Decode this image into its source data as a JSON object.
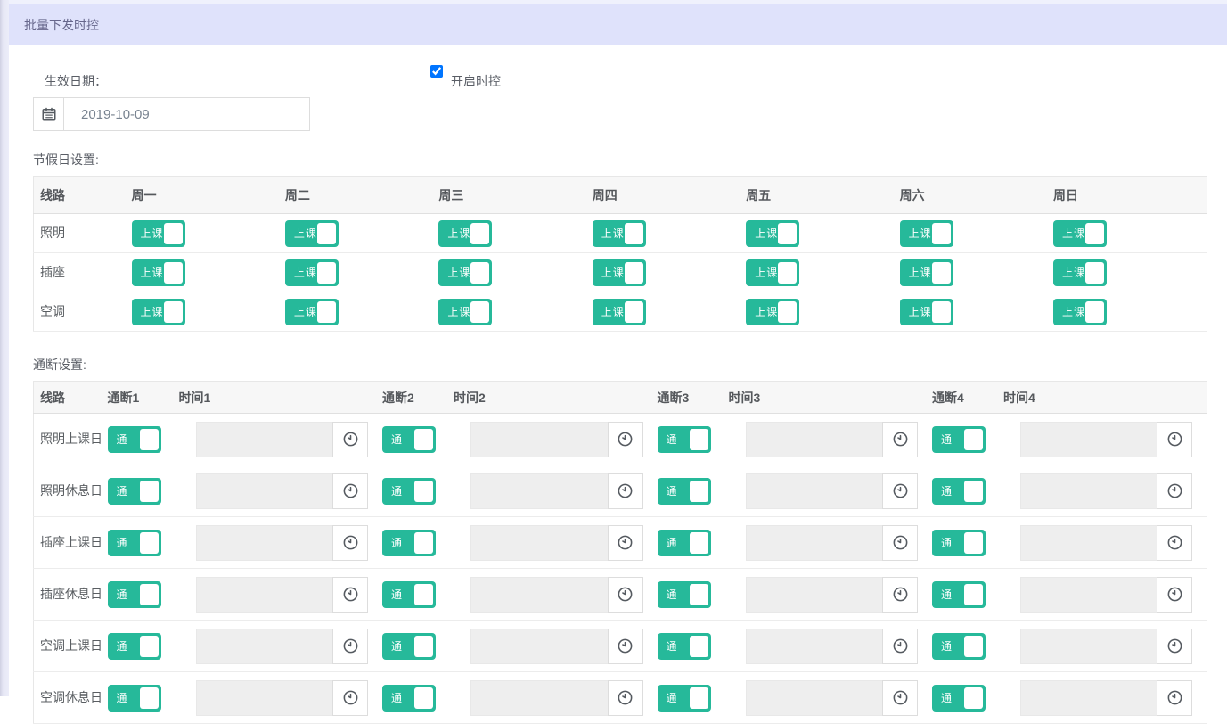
{
  "title_bar": {
    "title": "批量下发时控"
  },
  "form": {
    "effective_date_label": "生效日期：",
    "date_value": "2019-10-09",
    "enable_label": "开启时控",
    "enable_checked": true
  },
  "holiday_section": {
    "label": "节假日设置:",
    "columns": [
      "线路",
      "周一",
      "周二",
      "周三",
      "周四",
      "周五",
      "周六",
      "周日"
    ],
    "toggle_on_label": "上课",
    "rows": [
      {
        "line": "照明",
        "toggles": [
          true,
          true,
          true,
          true,
          true,
          true,
          true
        ]
      },
      {
        "line": "插座",
        "toggles": [
          true,
          true,
          true,
          true,
          true,
          true,
          true
        ]
      },
      {
        "line": "空调",
        "toggles": [
          true,
          true,
          true,
          true,
          true,
          true,
          true
        ]
      }
    ]
  },
  "onoff_section": {
    "label": "通断设置:",
    "columns": [
      "线路",
      "通断1",
      "时间1",
      "通断2",
      "时间2",
      "通断3",
      "时间3",
      "通断4",
      "时间4"
    ],
    "toggle_on_label": "通",
    "rows": [
      {
        "line": "照明上课日",
        "toggles": [
          true,
          true,
          true,
          true
        ],
        "times": [
          "",
          "",
          "",
          ""
        ]
      },
      {
        "line": "照明休息日",
        "toggles": [
          true,
          true,
          true,
          true
        ],
        "times": [
          "",
          "",
          "",
          ""
        ]
      },
      {
        "line": "插座上课日",
        "toggles": [
          true,
          true,
          true,
          true
        ],
        "times": [
          "",
          "",
          "",
          ""
        ]
      },
      {
        "line": "插座休息日",
        "toggles": [
          true,
          true,
          true,
          true
        ],
        "times": [
          "",
          "",
          "",
          ""
        ]
      },
      {
        "line": "空调上课日",
        "toggles": [
          true,
          true,
          true,
          true
        ],
        "times": [
          "",
          "",
          "",
          ""
        ]
      },
      {
        "line": "空调休息日",
        "toggles": [
          true,
          true,
          true,
          true
        ],
        "times": [
          "",
          "",
          "",
          ""
        ]
      }
    ]
  },
  "colors": {
    "accent_green": "#26b99a",
    "title_bar_bg": "#dfe2fb",
    "title_text": "#67678c"
  }
}
